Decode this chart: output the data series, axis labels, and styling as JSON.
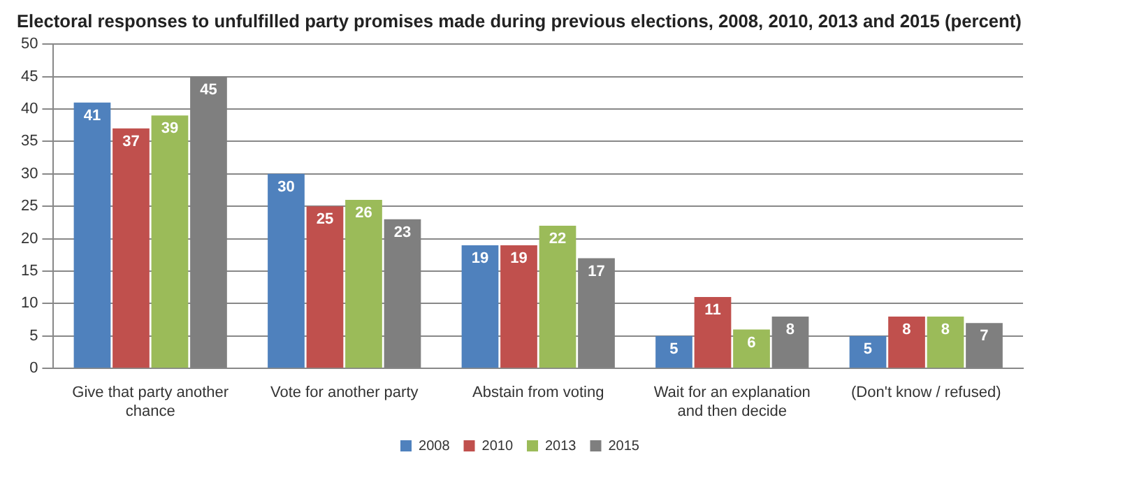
{
  "chart_data": {
    "type": "bar",
    "title": "Electoral responses to unfulfilled party promises made during previous elections, 2008, 2010, 2013 and 2015 (percent)",
    "categories": [
      "Give that party another chance",
      "Vote for another party",
      "Abstain from voting",
      "Wait for an explanation and then decide",
      "(Don't know / refused)"
    ],
    "series": [
      {
        "name": "2008",
        "color": "#4f81bd",
        "values": [
          41,
          30,
          19,
          5,
          5
        ]
      },
      {
        "name": "2010",
        "color": "#c0504d",
        "values": [
          37,
          25,
          19,
          11,
          8
        ]
      },
      {
        "name": "2013",
        "color": "#9bbb59",
        "values": [
          39,
          26,
          22,
          6,
          8
        ]
      },
      {
        "name": "2015",
        "color": "#7f7f7f",
        "values": [
          45,
          23,
          17,
          8,
          7
        ]
      }
    ],
    "ylim": [
      0,
      50
    ],
    "yticks": [
      0,
      5,
      10,
      15,
      20,
      25,
      30,
      35,
      40,
      45,
      50
    ],
    "grid": "y",
    "legend": "bottom",
    "data_labels": true
  }
}
